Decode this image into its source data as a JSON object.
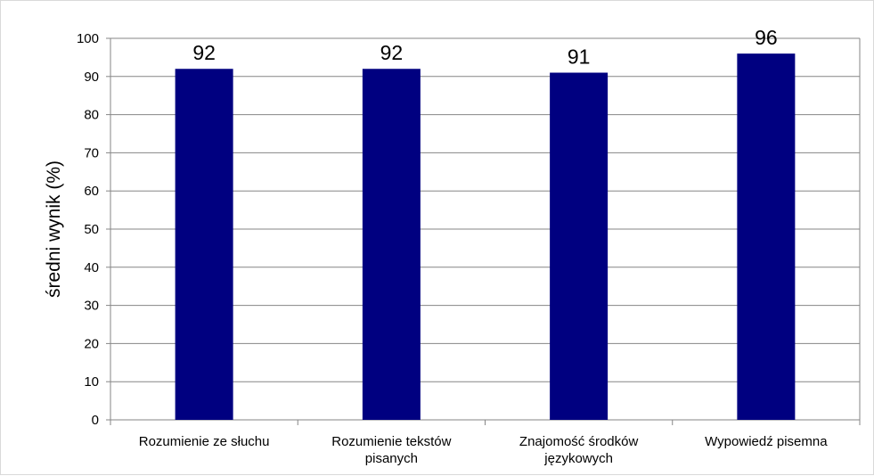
{
  "chart_data": {
    "type": "bar",
    "title": "",
    "xlabel": "",
    "ylabel": "średni wynik (%)",
    "categories": [
      [
        "Rozumienie ze słuchu"
      ],
      [
        "Rozumienie tekstów",
        "pisanych"
      ],
      [
        "Znajomość środków",
        "językowych"
      ],
      [
        "Wypowiedź pisemna"
      ]
    ],
    "values": [
      92,
      92,
      91,
      96
    ],
    "data_labels": [
      "92",
      "92",
      "91",
      "96"
    ],
    "ylim": [
      0,
      100
    ],
    "yticks": [
      0,
      10,
      20,
      30,
      40,
      50,
      60,
      70,
      80,
      90,
      100
    ],
    "grid": true,
    "legend": false,
    "bar_color": "#000080",
    "grid_color": "#868686"
  }
}
